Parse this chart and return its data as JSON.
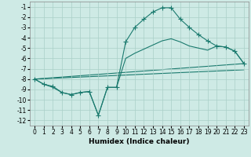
{
  "bg_color": "#ceeae5",
  "grid_color": "#aacfc8",
  "line_color": "#1a7a6e",
  "marker": "+",
  "markersize": 4,
  "linewidth": 0.8,
  "xlabel": "Humidex (Indice chaleur)",
  "xlabel_fontsize": 6.5,
  "tick_fontsize": 5.5,
  "xlim": [
    -0.5,
    23.5
  ],
  "ylim": [
    -12.5,
    -0.5
  ],
  "yticks": [
    -1,
    -2,
    -3,
    -4,
    -5,
    -6,
    -7,
    -8,
    -9,
    -10,
    -11,
    -12
  ],
  "xticks": [
    0,
    1,
    2,
    3,
    4,
    5,
    6,
    7,
    8,
    9,
    10,
    11,
    12,
    13,
    14,
    15,
    16,
    17,
    18,
    19,
    20,
    21,
    22,
    23
  ],
  "curve1_x": [
    0,
    1,
    2,
    3,
    4,
    5,
    6,
    7,
    8,
    9,
    10,
    11,
    12,
    13,
    14,
    15,
    16,
    17,
    18,
    19,
    20,
    21,
    22,
    23
  ],
  "curve1_y": [
    -8.0,
    -8.5,
    -8.7,
    -9.3,
    -9.5,
    -9.3,
    -9.2,
    -11.5,
    -8.8,
    -8.8,
    -4.4,
    -3.0,
    -2.2,
    -1.5,
    -1.1,
    -1.1,
    -2.2,
    -3.0,
    -3.7,
    -4.3,
    -4.8,
    -4.9,
    -5.3,
    -6.5
  ],
  "curve2_x": [
    0,
    1,
    2,
    3,
    4,
    5,
    6,
    7,
    8,
    9,
    10,
    11,
    12,
    13,
    14,
    15,
    16,
    17,
    18,
    19,
    20,
    21,
    22,
    23
  ],
  "curve2_y": [
    -8.0,
    -8.5,
    -8.8,
    -9.3,
    -9.5,
    -9.3,
    -9.2,
    -11.5,
    -8.8,
    -8.8,
    -6.0,
    -5.5,
    -5.1,
    -4.7,
    -4.3,
    -4.1,
    -4.4,
    -4.8,
    -5.0,
    -5.2,
    -4.8,
    -4.9,
    -5.3,
    -6.5
  ],
  "curve3_x": [
    0,
    23
  ],
  "curve3_y": [
    -8.0,
    -6.5
  ],
  "curve4_x": [
    0,
    23
  ],
  "curve4_y": [
    -8.0,
    -7.1
  ]
}
